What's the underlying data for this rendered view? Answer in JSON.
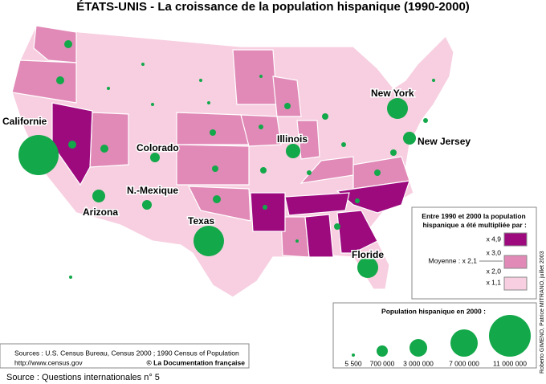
{
  "title": "ÉTATS-UNIS - La croissance de la population hispanique (1990-2000)",
  "labels": [
    "Californie",
    "Colorado",
    "N.-Mexique",
    "Arizona",
    "Texas",
    "Illinois",
    "New York",
    "New Jersey",
    "Floride"
  ],
  "color_legend": {
    "heading": "Entre 1990 et 2000 la population hispanique a été multipliée par :",
    "classes": [
      {
        "label": "x 4,9",
        "color": "#9c0a7e"
      },
      {
        "label": "x 3,0",
        "color": "#e18ab7"
      },
      {
        "label": "x 2,0",
        "color": "#f7cfe0"
      },
      {
        "label": "x 1,1"
      }
    ],
    "average": "Moyenne : x 2,1"
  },
  "size_legend": {
    "heading": "Population hispanique en 2000 :",
    "items": [
      "5 500",
      "700 000",
      "3 000 000",
      "7 000 000",
      "11 000 000"
    ]
  },
  "sources": {
    "line1": "Sources : U.S. Census Bureau, Census 2000 ; 1990 Census of Population",
    "line2": "http://www.census.gov",
    "publisher": "© La Documentation française"
  },
  "credit": "Roberto GIMENO, Patrice MITRANO, juillet 2003",
  "footer": "Source : Questions internationales n° 5"
}
